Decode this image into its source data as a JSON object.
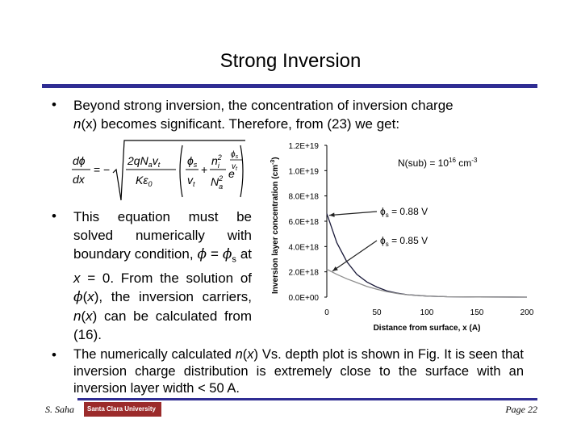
{
  "slide": {
    "title": "Strong Inversion",
    "bullet1_line1": "Beyond strong inversion, the concentration of inversion charge",
    "bullet1_line2_a": "n",
    "bullet1_line2_b": "(x) becomes significant. Therefore, from (23) we get:",
    "bullet2_parts": {
      "p1": "This equation must be solved numerically with boundary condition, ",
      "phi": "ϕ",
      "p2": " = ",
      "phis": "ϕ",
      "sub_s": "s",
      "p3": " at ",
      "x": "x",
      "p4": " = 0. From the solution of ",
      "phi2": "ϕ",
      "p5": "(",
      "x2": "x",
      "p6": "), the inversion carriers, ",
      "n": "n",
      "p7": "(",
      "x3": "x",
      "p8": ") can be calculated from (16)."
    },
    "bullet3_parts": {
      "p1": "The numerically calculated ",
      "n": "n",
      "p2": "(",
      "x": "x",
      "p3": ") Vs. depth plot is shown in Fig.  It is seen that inversion charge distribution is extremely close to the surface with an inversion layer width < 50 A."
    },
    "bullet_mark": "•"
  },
  "equation": {
    "d_phi": "dϕ",
    "dx": "dx",
    "eq": "=",
    "minus": "−",
    "num_left": "2qN",
    "num_left_sub": "a",
    "num_left_v": "v",
    "num_left_vsub": "t",
    "den_left": "Kε",
    "den_left_sub": "0",
    "phi_s": "ϕ",
    "phi_s_sub": "s",
    "v_t": "v",
    "v_t_sub": "t",
    "plus": "+",
    "n_i": "n",
    "n_i_sub": "i",
    "n_i_sup": "2",
    "N_a": "N",
    "N_a_sub": "a",
    "N_a_sup": "2",
    "e": "e",
    "exp_phi": "ϕ",
    "exp_phi_sub": "s",
    "exp_v": "v",
    "exp_v_sub": "t"
  },
  "chart_data": {
    "type": "line",
    "ylabel": "Inversion layer concentration (cm",
    "ylabel_sup": "-3",
    "ylabel_end": ")",
    "xlabel": "Distance from surface, x (A)",
    "xlim": [
      0,
      200
    ],
    "ylim": [
      0,
      1.2e+19
    ],
    "x_ticks": [
      "0",
      "50",
      "100",
      "150",
      "200"
    ],
    "y_ticks": [
      "0.0E+00",
      "2.0E+18",
      "4.0E+18",
      "6.0E+18",
      "8.0E+18",
      "1.0E+19",
      "1.2E+19"
    ],
    "annotation_nsub": "N(sub) = 10",
    "annotation_nsub_sup": "16",
    "annotation_nsub_unit": " cm",
    "annotation_nsub_unit_sup": "-3",
    "series": [
      {
        "name": "ϕs = 0.88 V",
        "color": "#1a1a3a",
        "x": [
          0,
          10,
          20,
          30,
          40,
          50,
          60,
          70,
          80,
          100,
          120,
          150,
          200
        ],
        "values": [
          6.6e+18,
          4.3e+18,
          2.8e+18,
          1.8e+18,
          1.2e+18,
          8e+17,
          5e+17,
          3.2e+17,
          2e+17,
          8e+16,
          3e+16,
          1e+16,
          0
        ]
      },
      {
        "name": "ϕs = 0.85 V",
        "color": "#8f8f8f",
        "x": [
          0,
          10,
          20,
          30,
          40,
          50,
          60,
          70,
          80,
          100,
          120,
          150,
          200
        ],
        "values": [
          2.2e+18,
          1.8e+18,
          1.45e+18,
          1.15e+18,
          8.5e+17,
          6.2e+17,
          4.3e+17,
          2.9e+17,
          1.9e+17,
          8e+16,
          3e+16,
          1e+16,
          0
        ]
      }
    ],
    "labels": [
      {
        "phi": "ϕ",
        "sub": "s",
        "text": " = 0.88 V"
      },
      {
        "phi": "ϕ",
        "sub": "s",
        "text": " = 0.85 V"
      }
    ]
  },
  "footer": {
    "author": "S. Saha",
    "logo": "Santa Clara University",
    "page": "Page 22"
  }
}
